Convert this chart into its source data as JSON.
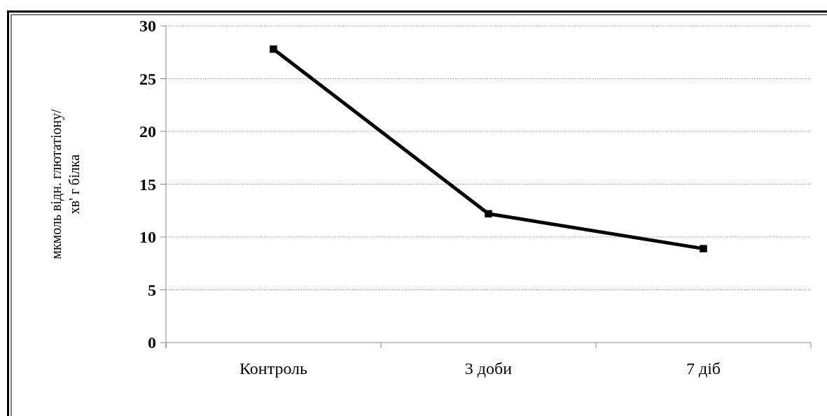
{
  "chart_data": {
    "type": "line",
    "ylabel": "мкмоль відн. глютатіону/ хв' г білка",
    "categories": [
      "Контроль",
      "3 доби",
      "7 діб"
    ],
    "series": [
      {
        "color": "#000000",
        "values": [
          27.8,
          12.2,
          8.9
        ]
      }
    ],
    "ylim": [
      0,
      30
    ],
    "yticks": [
      0,
      5,
      10,
      15,
      20,
      25,
      30
    ],
    "grid": "y",
    "marker": "square",
    "line_style": "solid"
  }
}
